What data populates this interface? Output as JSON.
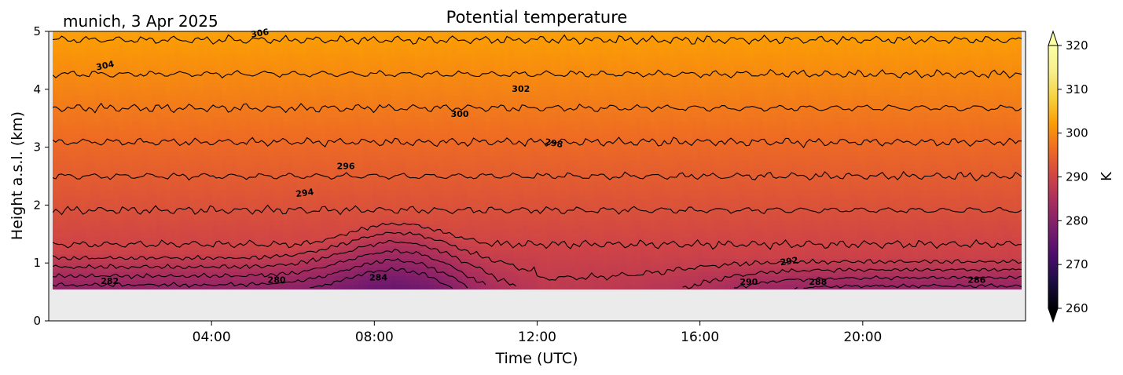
{
  "figure": {
    "location_date": "munich, 3 Apr 2025",
    "title": "Potential temperature"
  },
  "chart_data": {
    "type": "heatmap",
    "title": "Potential temperature",
    "xlabel": "Time (UTC)",
    "ylabel": "Height a.s.l. (km)",
    "xlim_hours": [
      0,
      24
    ],
    "ylim_km": [
      0,
      5
    ],
    "x_ticks": [
      {
        "hour": 4,
        "label": "04:00"
      },
      {
        "hour": 8,
        "label": "08:00"
      },
      {
        "hour": 12,
        "label": "12:00"
      },
      {
        "hour": 16,
        "label": "16:00"
      },
      {
        "hour": 20,
        "label": "20:00"
      }
    ],
    "y_ticks": [
      {
        "km": 0,
        "label": "0"
      },
      {
        "km": 1,
        "label": "1"
      },
      {
        "km": 2,
        "label": "2"
      },
      {
        "km": 3,
        "label": "3"
      },
      {
        "km": 4,
        "label": "4"
      },
      {
        "km": 5,
        "label": "5"
      }
    ],
    "data_bottom_km": 0.55,
    "colorbar": {
      "label": "K",
      "min": 260,
      "max": 320,
      "extend": "both",
      "colormap": "inferno",
      "ticks": [
        {
          "value": 260,
          "label": "260"
        },
        {
          "value": 270,
          "label": "270"
        },
        {
          "value": 280,
          "label": "280"
        },
        {
          "value": 290,
          "label": "290"
        },
        {
          "value": 300,
          "label": "300"
        },
        {
          "value": 310,
          "label": "310"
        },
        {
          "value": 320,
          "label": "320"
        }
      ]
    },
    "grid": false,
    "missing_data_color": "#ebebeb",
    "contour_labels": [
      {
        "text": "306",
        "hour": 5.2,
        "km": 4.92,
        "angle": -10
      },
      {
        "text": "304",
        "hour": 1.4,
        "km": 4.36,
        "angle": -12
      },
      {
        "text": "302",
        "hour": 11.6,
        "km": 3.96,
        "angle": 0
      },
      {
        "text": "300",
        "hour": 10.1,
        "km": 3.52,
        "angle": 0
      },
      {
        "text": "298",
        "hour": 12.4,
        "km": 3.02,
        "angle": 10
      },
      {
        "text": "296",
        "hour": 7.3,
        "km": 2.62,
        "angle": 0
      },
      {
        "text": "294",
        "hour": 6.3,
        "km": 2.16,
        "angle": -8
      },
      {
        "text": "292",
        "hour": 18.2,
        "km": 0.98,
        "angle": -8
      },
      {
        "text": "290",
        "hour": 17.2,
        "km": 0.62,
        "angle": 0
      },
      {
        "text": "288",
        "hour": 18.9,
        "km": 0.62,
        "angle": 0
      },
      {
        "text": "286",
        "hour": 22.8,
        "km": 0.66,
        "angle": 0
      },
      {
        "text": "284",
        "hour": 8.1,
        "km": 0.7,
        "angle": 0
      },
      {
        "text": "282",
        "hour": 1.5,
        "km": 0.64,
        "angle": 0
      },
      {
        "text": "280",
        "hour": 5.6,
        "km": 0.66,
        "angle": 0
      }
    ]
  }
}
